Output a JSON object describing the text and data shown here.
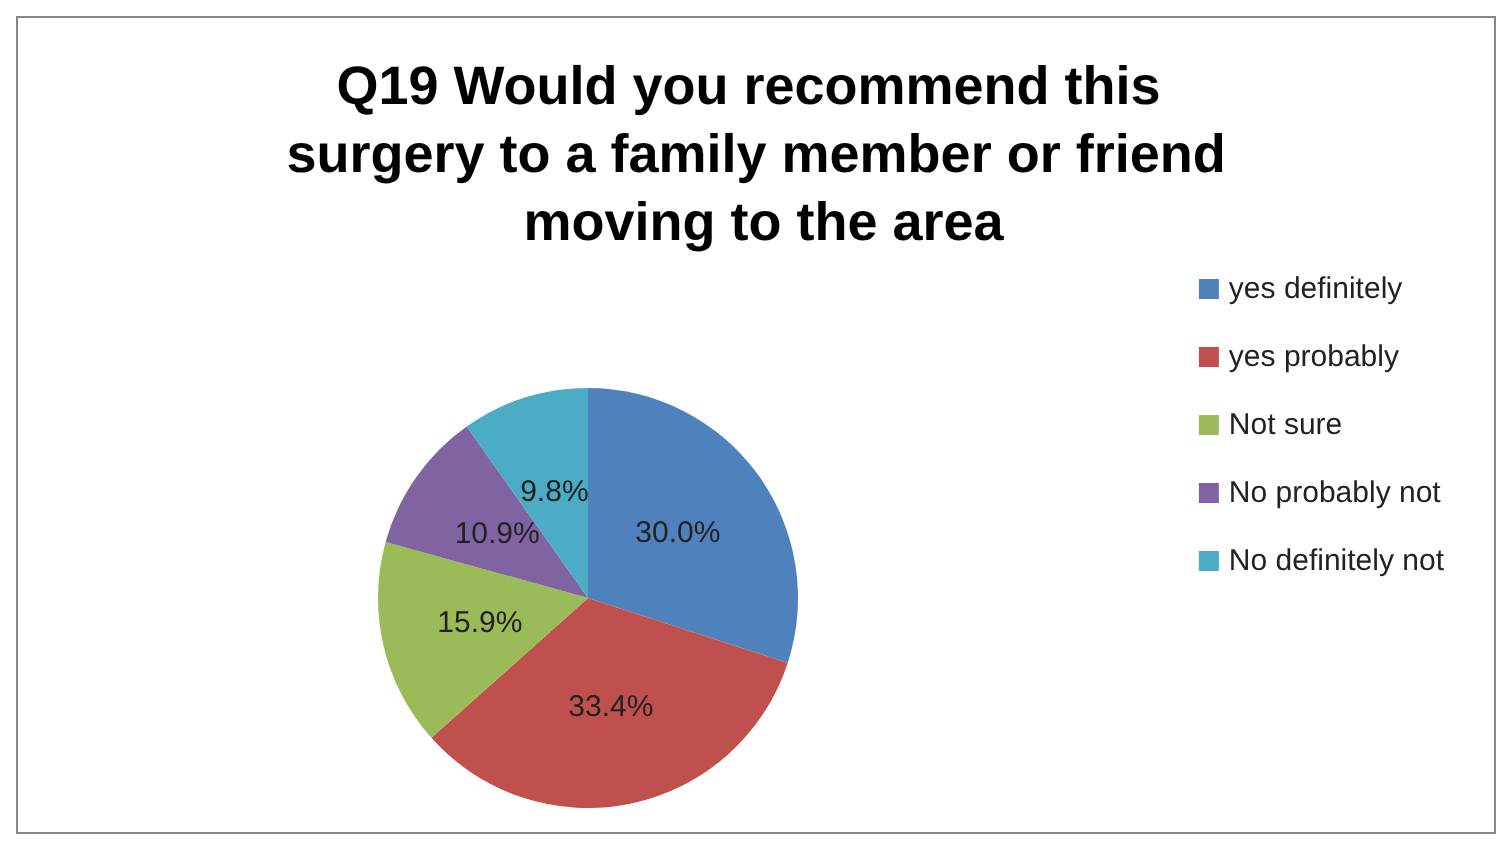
{
  "chart_data": {
    "type": "pie",
    "title": "Q19 Would you recommend this surgery to a family member or friend moving to the area",
    "categories": [
      "yes definitely",
      "yes probably",
      "Not sure",
      "No probably not",
      "No definitely not"
    ],
    "values": [
      30.0,
      33.4,
      15.9,
      10.9,
      9.8
    ],
    "value_labels": [
      "30.0%",
      "33.4%",
      "15.9%",
      "10.9%",
      "9.8%"
    ],
    "colors": [
      "#4f81bd",
      "#c0504d",
      "#9bbb59",
      "#8064a2",
      "#4bacc6"
    ],
    "legend": "right"
  }
}
